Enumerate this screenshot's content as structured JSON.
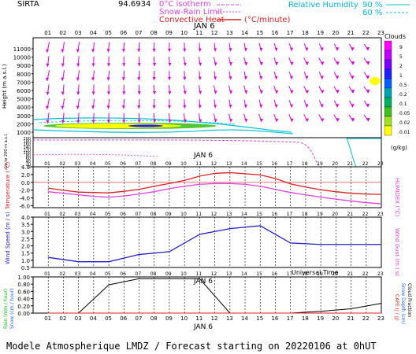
{
  "header": {
    "station": "SIRTA",
    "coord": "94.6934",
    "legend_iso": "0°C isotherm",
    "legend_snow": "Snow-Rain Limit",
    "legend_conv": "Convective Heat",
    "legend_conv_unit": "(°C/minute)",
    "rh_label": "Relative Humidity",
    "rh_90": "90 %",
    "rh_60": "60 %"
  },
  "date_label": "JAN 6",
  "hours": [
    "01",
    "02",
    "03",
    "04",
    "05",
    "06",
    "07",
    "08",
    "09",
    "10",
    "11",
    "12",
    "13",
    "14",
    "15",
    "16",
    "17",
    "18",
    "19",
    "20",
    "21",
    "22",
    "23"
  ],
  "panel1": {
    "ylabel": "Height (m a.s.l.)",
    "ylabel_low": "Up to 200 m a.s.l.",
    "yticks_upper": [
      "11000",
      "10000",
      "9000",
      "8000",
      "7000",
      "6000",
      "5000",
      "4000",
      "3000",
      "2000",
      "1000"
    ],
    "yticks_lower": [
      "200",
      "180",
      "160",
      "140",
      "120",
      "100",
      "80",
      "60",
      "40",
      "20",
      "0"
    ],
    "colorbar_title": "Clouds",
    "colorbar_ticks": [
      "9",
      "5",
      "2",
      "1",
      "0.5",
      "0.2",
      "0.1",
      "0.05",
      "0.02",
      "0.01"
    ],
    "colorbar_unit": "(g/kg)",
    "colorbar_colors": [
      "#ff00ff",
      "#c000ff",
      "#7a00ff",
      "#2020ff",
      "#0060ff",
      "#00a0b0",
      "#00b060",
      "#40c020",
      "#a0e020",
      "#ffff00"
    ]
  },
  "panel2": {
    "ylabel_left": "Temperature (°C)",
    "ylabel_right": "HUMIDEX (°C)",
    "yticks": [
      "4.0",
      "2.0",
      "0.0",
      "-2.0",
      "-4.0",
      "-6.0"
    ],
    "ylim": [
      -6.5,
      4.0
    ]
  },
  "panel3": {
    "ylabel_left": "Wind Speed (m / s)",
    "ylabel_right": "Wind Gust (m / s)",
    "yticks": [
      "4.0",
      "3.5",
      "3.0",
      "2.5",
      "2.0",
      "1.5",
      "1.0",
      "0.5"
    ],
    "ylim": [
      0.5,
      4.0
    ]
  },
  "panel4": {
    "ylabel_left1": "Rain (mm / hour)",
    "ylabel_left2": "Snow (cm / hour)",
    "ylabel_right1": "CAPE (J / g)",
    "ylabel_right2": "Snow Depth (cm)",
    "ylabel_right3": "Cloud Fraction",
    "yticks": [
      "1.00",
      "0.80",
      "0.60",
      "0.40",
      "0.20",
      "0.00"
    ],
    "ylim": [
      0,
      1.0
    ]
  },
  "footer": {
    "time_label": "Universal Time",
    "caption": "Modele Atmospherique LMDZ / Forecast starting on 20220106 at 0hUT"
  },
  "chart_data": [
    {
      "type": "line",
      "title": "Height-time cross section",
      "note_series": "cloud water content shading near 1000-1500 m and ~7000 m; wind arrows",
      "x": [
        1,
        2,
        3,
        4,
        5,
        6,
        7,
        8,
        9,
        10,
        11,
        12,
        13,
        14,
        15,
        16,
        17,
        18,
        19,
        20,
        21,
        22,
        23
      ],
      "ylim": [
        0,
        11500
      ]
    },
    {
      "type": "line",
      "ylabel": "Temperature (°C)",
      "x": [
        1,
        2,
        3,
        4,
        5,
        6,
        7,
        8,
        9,
        10,
        11,
        12,
        13,
        14,
        15,
        16,
        17,
        18,
        19,
        20,
        21,
        22,
        23
      ],
      "series": [
        {
          "name": "Temperature",
          "color": "#e02020",
          "values": [
            -1.5,
            -2.0,
            -2.5,
            -2.6,
            -2.7,
            -2.3,
            -1.8,
            -1.0,
            -0.3,
            0.5,
            1.6,
            2.3,
            2.5,
            2.2,
            1.9,
            1.0,
            -0.4,
            -1.2,
            -1.9,
            -2.4,
            -2.8,
            -3.0,
            -3.1
          ]
        },
        {
          "name": "HUMIDEX",
          "color": "#e040e0",
          "values": [
            -2.4,
            -2.8,
            -3.2,
            -3.6,
            -3.8,
            -3.5,
            -3.0,
            -2.4,
            -1.6,
            -1.0,
            -0.5,
            -0.3,
            -0.3,
            -0.5,
            -1.0,
            -1.8,
            -2.6,
            -3.2,
            -3.8,
            -4.3,
            -4.8,
            -5.2,
            -5.5
          ]
        }
      ],
      "ylim": [
        -6.5,
        4.0
      ]
    },
    {
      "type": "line",
      "ylabel": "Wind Speed (m / s)",
      "x": [
        1,
        3,
        5,
        7,
        9,
        11,
        13,
        15,
        17,
        19,
        21,
        23
      ],
      "series": [
        {
          "name": "Wind Speed",
          "color": "#2020d0",
          "values": [
            1.2,
            0.9,
            0.9,
            1.4,
            1.6,
            2.8,
            3.2,
            3.4,
            2.2,
            2.1,
            2.1,
            2.1
          ]
        }
      ],
      "ylim": [
        0.5,
        4.0
      ]
    },
    {
      "type": "line",
      "ylabel": "Rain (mm / hour)",
      "x": [
        1,
        3,
        5,
        7,
        9,
        11,
        13,
        15,
        17,
        19,
        21,
        23
      ],
      "series": [
        {
          "name": "Cloud Fraction",
          "color": "#000000",
          "values": [
            0.0,
            0.0,
            0.78,
            0.95,
            0.95,
            0.95,
            0.0,
            0.0,
            0.0,
            0.05,
            0.12,
            0.27
          ]
        },
        {
          "name": "Rain",
          "color": "#00c000",
          "values": [
            0,
            0,
            0,
            0,
            0,
            0,
            0,
            0,
            0,
            0,
            0,
            0
          ]
        },
        {
          "name": "CAPE",
          "color": "#e02020",
          "values": [
            0,
            0,
            0,
            0,
            0,
            0,
            0,
            0,
            0,
            0,
            0,
            0
          ]
        }
      ],
      "ylim": [
        0,
        1.0
      ]
    }
  ]
}
